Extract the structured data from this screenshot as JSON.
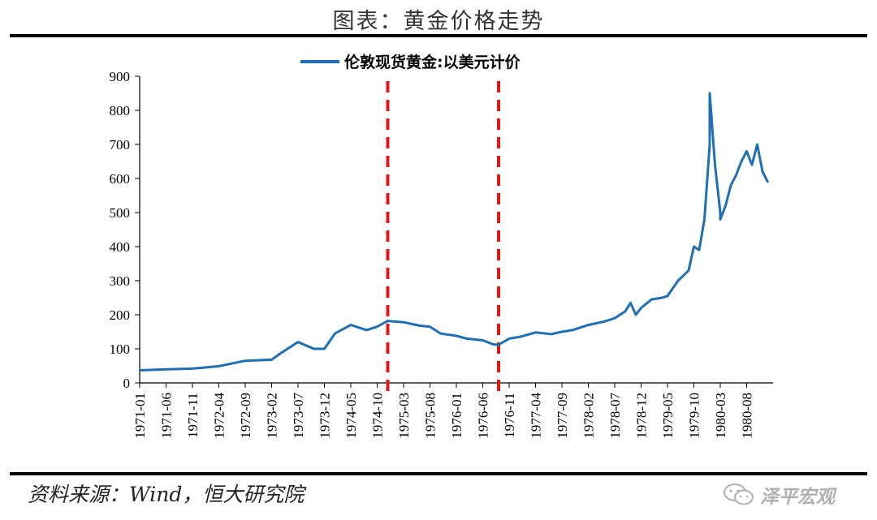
{
  "figure": {
    "title": "图表：黄金价格走势",
    "source": "资料来源：Wind，恒大研究院",
    "watermark": "泽平宏观"
  },
  "colors": {
    "series": "#1f6fb7",
    "marker": "#e31919",
    "axis": "#000000"
  },
  "chart_data": {
    "type": "line",
    "title": "",
    "xlabel": "",
    "ylabel": "",
    "ylim": [
      0,
      900
    ],
    "yticks": [
      0,
      100,
      200,
      300,
      400,
      500,
      600,
      700,
      800,
      900
    ],
    "xlim": [
      "1971-01",
      "1981-01"
    ],
    "xticks": [
      "1971-01",
      "1971-06",
      "1971-11",
      "1972-04",
      "1972-09",
      "1973-02",
      "1973-07",
      "1973-12",
      "1974-05",
      "1974-10",
      "1975-03",
      "1975-08",
      "1976-01",
      "1976-06",
      "1976-11",
      "1977-04",
      "1977-09",
      "1978-02",
      "1978-07",
      "1978-12",
      "1979-05",
      "1979-10",
      "1980-03",
      "1980-08"
    ],
    "grid": false,
    "legend": "top-center",
    "series": [
      {
        "name": "伦敦现货黄金:以美元计价",
        "x": [
          "1971-01",
          "1971-06",
          "1971-11",
          "1972-04",
          "1972-09",
          "1973-02",
          "1973-04",
          "1973-07",
          "1973-10",
          "1973-12",
          "1974-02",
          "1974-05",
          "1974-08",
          "1974-10",
          "1974-12",
          "1975-03",
          "1975-06",
          "1975-08",
          "1975-10",
          "1976-01",
          "1976-03",
          "1976-06",
          "1976-08",
          "1976-09",
          "1976-11",
          "1977-01",
          "1977-04",
          "1977-07",
          "1977-09",
          "1977-11",
          "1978-02",
          "1978-05",
          "1978-07",
          "1978-09",
          "1978-10",
          "1978-11",
          "1978-12",
          "1979-02",
          "1979-04",
          "1979-05",
          "1979-07",
          "1979-09",
          "1979-10",
          "1979-11",
          "1979-12",
          "1980-01",
          "1980-01",
          "1980-02",
          "1980-03",
          "1980-03",
          "1980-04",
          "1980-05",
          "1980-06",
          "1980-07",
          "1980-08",
          "1980-09",
          "1980-10",
          "1980-11",
          "1980-12"
        ],
        "values": [
          37,
          40,
          42,
          49,
          65,
          68,
          90,
          120,
          100,
          100,
          145,
          170,
          155,
          165,
          182,
          178,
          168,
          165,
          145,
          138,
          130,
          125,
          113,
          112,
          130,
          135,
          148,
          143,
          150,
          155,
          170,
          180,
          190,
          210,
          235,
          200,
          220,
          245,
          250,
          255,
          300,
          330,
          400,
          390,
          480,
          700,
          850,
          640,
          500,
          480,
          520,
          580,
          610,
          650,
          680,
          640,
          700,
          620,
          590
        ]
      }
    ],
    "annotations": [
      {
        "type": "vertical-dashed-line",
        "x": "1974-12"
      },
      {
        "type": "vertical-dashed-line",
        "x": "1976-09"
      }
    ]
  }
}
